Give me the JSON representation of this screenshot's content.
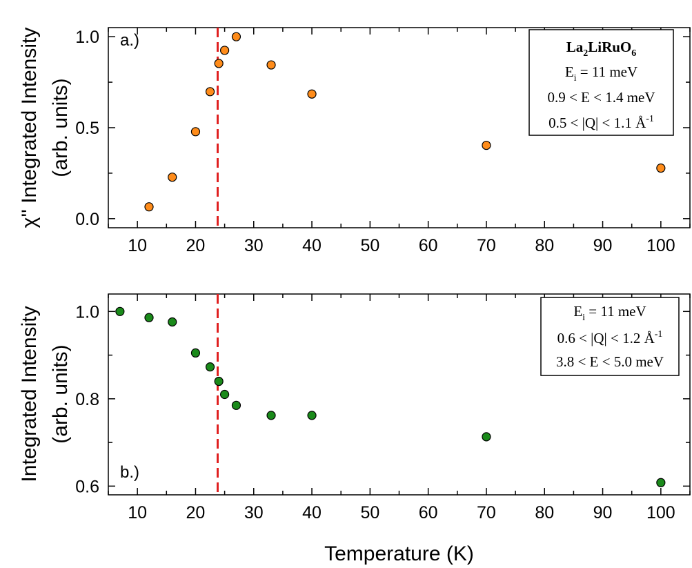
{
  "chart_data": [
    {
      "type": "scatter",
      "panel_label": "a.)",
      "ylabel_line1": "χ'' Integrated Intensity",
      "ylabel_line2": "(arb. units)",
      "xlim": [
        5,
        105
      ],
      "ylim": [
        -0.05,
        1.05
      ],
      "xticks": [
        10,
        20,
        30,
        40,
        50,
        60,
        70,
        80,
        90,
        100
      ],
      "yticks": [
        0.0,
        0.5,
        1.0
      ],
      "ytick_labels": [
        "0.0",
        "0.5",
        "1.0"
      ],
      "marker_color": "#ff8c1a",
      "series": [
        {
          "name": "La2LiRuO6",
          "x": [
            12,
            16,
            20,
            22.5,
            24,
            25,
            27,
            33,
            40,
            70,
            100
          ],
          "y": [
            0.065,
            0.228,
            0.478,
            0.698,
            0.853,
            0.925,
            1.0,
            0.845,
            0.685,
            0.403,
            0.278
          ]
        }
      ],
      "vline": {
        "x": 23.8,
        "color": "#e02020",
        "style": "dashed"
      },
      "legend": {
        "placement": "top-right",
        "title": {
          "main": "La",
          "sub1": "2",
          "mid": "LiRuO",
          "sub2": "6"
        },
        "ei": {
          "pre": "E",
          "sub": "i",
          "post": " = 11 meV"
        },
        "erange": "0.9 < E < 1.4 meV",
        "qrange": {
          "pre": "0.5 < |Q| < 1.1 Å",
          "sup": "-1"
        }
      }
    },
    {
      "type": "scatter",
      "panel_label": "b.)",
      "ylabel_line1": "Integrated Intensity",
      "ylabel_line2": "(arb. units)",
      "xlabel": "Temperature (K)",
      "xlim": [
        5,
        105
      ],
      "ylim": [
        0.58,
        1.04
      ],
      "xticks": [
        10,
        20,
        30,
        40,
        50,
        60,
        70,
        80,
        90,
        100
      ],
      "yticks": [
        0.6,
        0.8,
        1.0
      ],
      "ytick_labels": [
        "0.6",
        "0.8",
        "1.0"
      ],
      "marker_color": "#1a8a1a",
      "series": [
        {
          "name": "La2LiRuO6",
          "x": [
            7,
            12,
            16,
            20,
            22.5,
            24,
            25,
            27,
            33,
            40,
            70,
            100
          ],
          "y": [
            1.0,
            0.986,
            0.976,
            0.905,
            0.873,
            0.84,
            0.81,
            0.785,
            0.762,
            0.762,
            0.713,
            0.608
          ]
        }
      ],
      "vline": {
        "x": 23.8,
        "color": "#e02020",
        "style": "dashed"
      },
      "legend": {
        "placement": "top-right",
        "ei": {
          "pre": "E",
          "sub": "i",
          "post": " = 11 meV"
        },
        "qrange": {
          "pre": "0.6 < |Q| < 1.2 Å",
          "sup": "-1"
        },
        "erange": "3.8 < E < 5.0 meV"
      }
    }
  ]
}
